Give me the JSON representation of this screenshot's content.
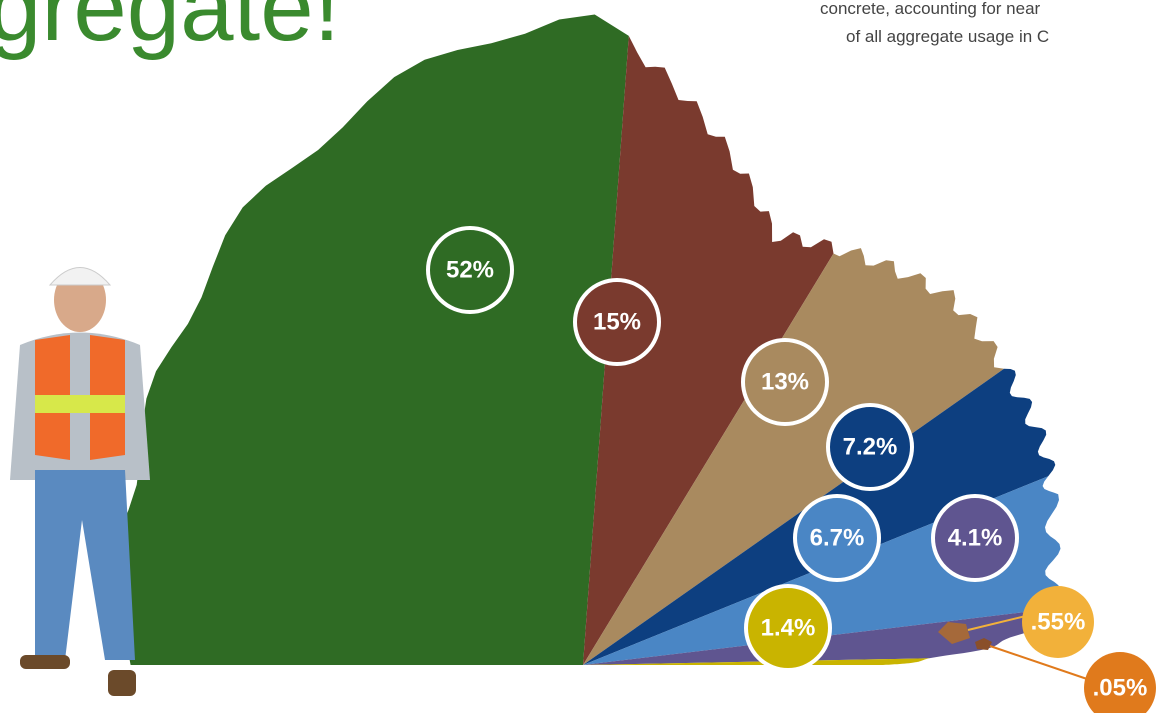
{
  "chart_data": {
    "type": "pie",
    "title": "gregate!",
    "annotations": [
      "concrete, accounting for near",
      "of all aggregate usage in C"
    ],
    "values": [
      52,
      15,
      13,
      7.2,
      6.7,
      4.1,
      1.4,
      0.55,
      0.05
    ],
    "value_labels": [
      "52%",
      "15%",
      "13%",
      "7.2%",
      "6.7%",
      "4.1%",
      "1.4%",
      ".55%",
      ".05%"
    ],
    "colors": [
      "#2f6b24",
      "#7a3a2e",
      "#a98a5f",
      "#0d3f80",
      "#4a86c5",
      "#5f5590",
      "#c9b400",
      "#f2b13a",
      "#e07a1c"
    ]
  }
}
